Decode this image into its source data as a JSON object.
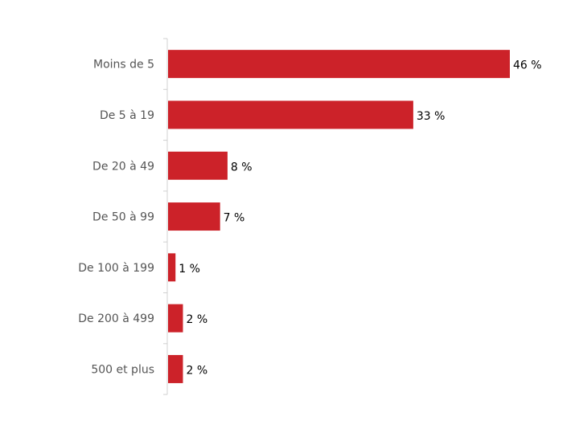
{
  "chart_data": {
    "type": "bar",
    "orientation": "horizontal",
    "categories": [
      "Moins de 5",
      "De 5 à 19",
      "De 20 à 49",
      "De 50 à 99",
      "De 100 à 199",
      "De 200 à 499",
      "500 et plus"
    ],
    "values": [
      46,
      33,
      8,
      7,
      1,
      2,
      2
    ],
    "data_labels": [
      "46 %",
      "33 %",
      "8 %",
      "7 %",
      "1 %",
      "2 %",
      "2 %"
    ],
    "unit": "%",
    "title": "",
    "xlabel": "",
    "ylabel": "",
    "xlim": [
      0,
      46
    ],
    "grid": false,
    "legend": "none",
    "bar_color": "#CC2229"
  }
}
